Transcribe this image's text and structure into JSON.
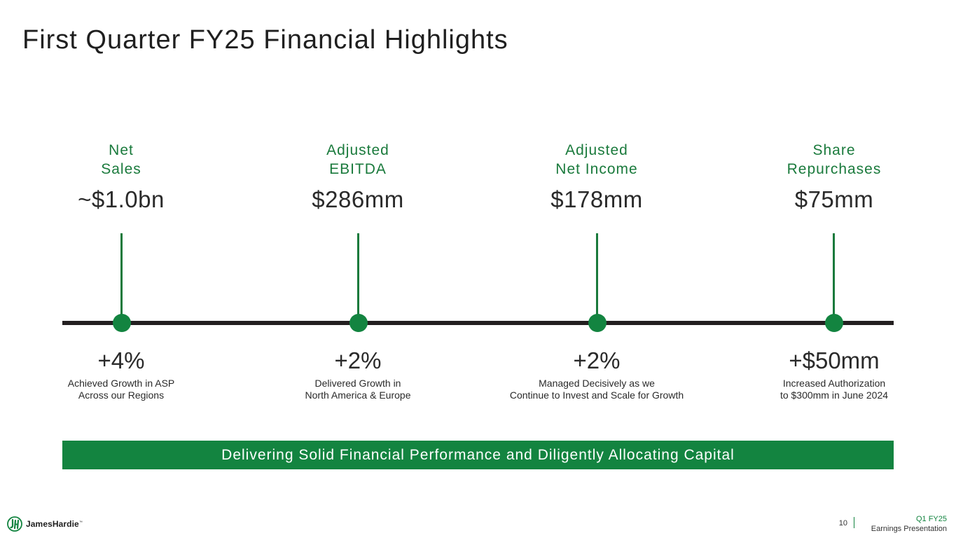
{
  "title": "First Quarter FY25 Financial Highlights",
  "metrics": [
    {
      "label_line1": "Net",
      "label_line2": "Sales",
      "value": "~$1.0bn",
      "change": "+4%",
      "desc_line1": "Achieved Growth in ASP",
      "desc_line2": "Across our Regions"
    },
    {
      "label_line1": "Adjusted",
      "label_line2": "EBITDA",
      "value": "$286mm",
      "change": "+2%",
      "desc_line1": "Delivered Growth in",
      "desc_line2": "North America & Europe"
    },
    {
      "label_line1": "Adjusted",
      "label_line2": "Net Income",
      "value": "$178mm",
      "change": "+2%",
      "desc_line1": "Managed Decisively as we",
      "desc_line2": "Continue to Invest and Scale for Growth"
    },
    {
      "label_line1": "Share",
      "label_line2": "Repurchases",
      "value": "$75mm",
      "change": "+$50mm",
      "desc_line1": "Increased Authorization",
      "desc_line2": "to $300mm in June 2024"
    }
  ],
  "banner": "Delivering Solid Financial Performance and Diligently Allocating Capital",
  "footer": {
    "logo_text": "JamesHardie",
    "logo_tm": "™",
    "page_number": "10",
    "label_line1": "Q1 FY25",
    "label_line2": "Earnings Presentation"
  },
  "colors": {
    "brand_green": "#138440",
    "label_green": "#1a7a3c",
    "timeline": "#231f20"
  }
}
